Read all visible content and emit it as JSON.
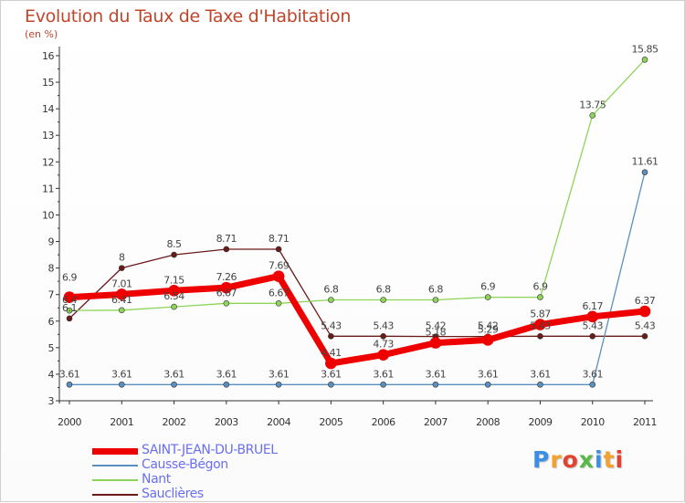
{
  "title": "Evolution du Taux de Taxe d'Habitation",
  "unit": "(en %)",
  "logo": {
    "text": "Proxiti",
    "letters": [
      "P",
      "r",
      "o",
      "x",
      "i",
      "t",
      "i"
    ],
    "colors": [
      "#3a8ee6",
      "#f4a22d",
      "#e2432e",
      "#59b946",
      "#3a8ee6",
      "#f4a22d",
      "#e2432e"
    ]
  },
  "chart_data": {
    "type": "line",
    "title": "Evolution du Taux de Taxe d'Habitation",
    "ylabel": "(en %)",
    "xlabel": "",
    "x": [
      "2000",
      "2001",
      "2002",
      "2003",
      "2004",
      "2005",
      "2006",
      "2007",
      "2008",
      "2009",
      "2010",
      "2011"
    ],
    "ylim": [
      3,
      16
    ],
    "yticks": [
      "3",
      "4",
      "5",
      "6",
      "7",
      "8",
      "9",
      "10",
      "11",
      "12",
      "13",
      "14",
      "15",
      "16"
    ],
    "grid": false,
    "legend_position": "bottom-left",
    "series": [
      {
        "name": "Sauclières",
        "color": "#6b1a1a",
        "width": 1.3,
        "values": [
          6.1,
          8,
          8.5,
          8.71,
          8.71,
          5.43,
          5.43,
          5.42,
          5.42,
          5.43,
          5.43,
          5.43
        ],
        "labels": [
          "6.1",
          "8",
          "8.5",
          "8.71",
          "8.71",
          "5.43",
          "5.43",
          "5.42",
          "5.42",
          "5.43",
          "5.43",
          "5.43"
        ]
      },
      {
        "name": "Nant",
        "color": "#8ed45a",
        "width": 1.3,
        "values": [
          6.4,
          6.41,
          6.54,
          6.67,
          6.67,
          6.8,
          6.8,
          6.8,
          6.9,
          6.9,
          13.75,
          15.85
        ],
        "labels": [
          "6.4",
          "6.41",
          "6.54",
          "6.67",
          "6.67",
          "6.8",
          "6.8",
          "6.8",
          "6.9",
          "6.9",
          "13.75",
          "15.85"
        ]
      },
      {
        "name": "Causse-Bégon",
        "color": "#5a8fc0",
        "width": 1.3,
        "values": [
          3.61,
          3.61,
          3.61,
          3.61,
          3.61,
          3.61,
          3.61,
          3.61,
          3.61,
          3.61,
          3.61,
          11.61
        ],
        "labels": [
          "3.61",
          "3.61",
          "3.61",
          "3.61",
          "3.61",
          "3.61",
          "3.61",
          "3.61",
          "3.61",
          "3.61",
          "3.61",
          "11.61"
        ]
      },
      {
        "name": "SAINT-JEAN-DU-BRUEL",
        "color": "#ee0000",
        "width": 7,
        "values": [
          6.9,
          7.01,
          7.15,
          7.26,
          7.69,
          4.41,
          4.73,
          5.18,
          5.29,
          5.87,
          6.17,
          6.37
        ],
        "labels": [
          "6.9",
          "7.01",
          "7.15",
          "7.26",
          "7.69",
          "4.41",
          "4.73",
          "5.18",
          "5.29",
          "5.87",
          "6.17",
          "6.37"
        ]
      }
    ]
  },
  "legend": [
    {
      "label": "SAINT-JEAN-DU-BRUEL",
      "color": "#ee0000",
      "width": 7
    },
    {
      "label": "Causse-Bégon",
      "color": "#5a8fc0",
      "width": 2
    },
    {
      "label": "Nant",
      "color": "#8ed45a",
      "width": 2
    },
    {
      "label": "Sauclières",
      "color": "#6b1a1a",
      "width": 2
    }
  ]
}
